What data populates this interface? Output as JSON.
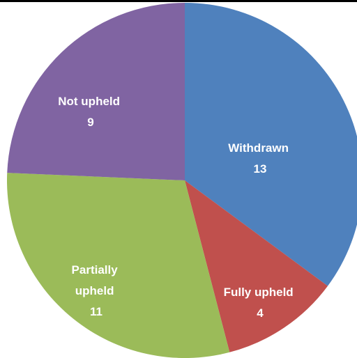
{
  "chart_data": {
    "type": "pie",
    "title": "",
    "start_angle_deg": 0,
    "direction": "clockwise",
    "slices": [
      {
        "name": "Withdrawn",
        "label_lines": [
          "Withdrawn"
        ],
        "value": 13,
        "value_label": "13",
        "color": "#4F81BD"
      },
      {
        "name": "Fully upheld",
        "label_lines": [
          "Fully upheld"
        ],
        "value": 4,
        "value_label": "4",
        "color": "#C0504D"
      },
      {
        "name": "Partially upheld",
        "label_lines": [
          "Partially",
          "upheld"
        ],
        "value": 11,
        "value_label": "11",
        "color": "#9BBB59"
      },
      {
        "name": "Not upheld",
        "label_lines": [
          "Not upheld"
        ],
        "value": 9,
        "value_label": "9",
        "color": "#8064A2"
      }
    ]
  }
}
